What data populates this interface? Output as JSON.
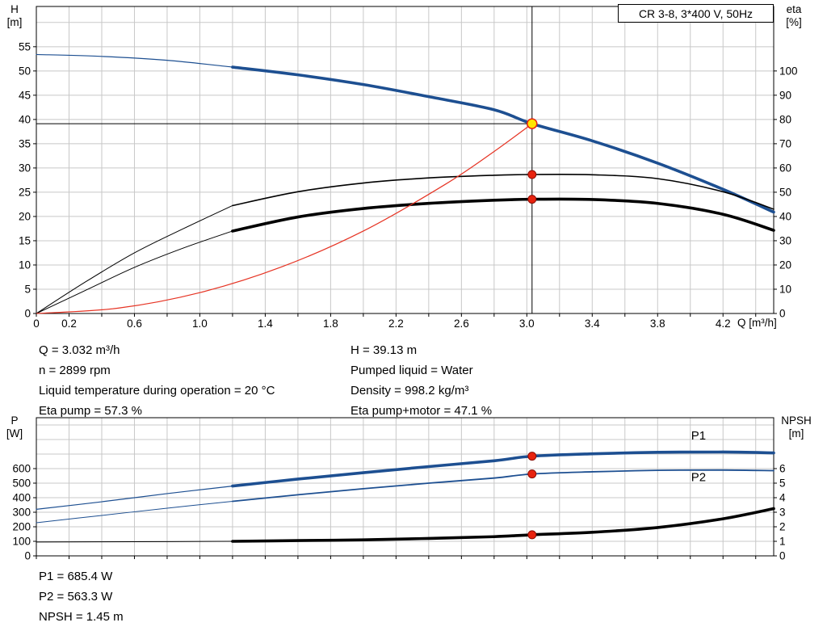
{
  "title_box": {
    "label": "CR 3-8, 3*400 V, 50Hz"
  },
  "info": {
    "left": [
      "Q = 3.032 m³/h",
      "n = 2899 rpm",
      "Liquid temperature during operation = 20 °C",
      "Eta pump = 57.3 %"
    ],
    "right": [
      "H = 39.13 m",
      "Pumped liquid = Water",
      "Density = 998.2 kg/m³",
      "Eta pump+motor = 47.1 %"
    ]
  },
  "results": [
    "P1 = 685.4 W",
    "P2 = 563.3 W",
    "NPSH = 1.45 m"
  ],
  "colors": {
    "blue": "#1d4f91",
    "black": "#000000",
    "red": "#e63323",
    "grid": "#c8c8c8",
    "axis": "#000000",
    "marker_red": "#e8230f",
    "marker_red_edge": "#8a0d05",
    "marker_yellow": "#ffe600"
  },
  "chart_data": [
    {
      "type": "line",
      "name": "hq-performance-chart",
      "x_axis": {
        "label": "Q [m³/h]",
        "min": 0,
        "max": 4.51,
        "tick_step": 0.2,
        "grid_step": 0.2,
        "labeled_ticks": [
          0,
          0.2,
          0.6,
          1.0,
          1.4,
          1.8,
          2.2,
          2.6,
          3.0,
          3.4,
          3.8,
          4.2
        ]
      },
      "y_left": {
        "label": "H",
        "unit": "[m]",
        "min": 0,
        "max": 63.3,
        "ticks": [
          0,
          5,
          10,
          15,
          20,
          25,
          30,
          35,
          40,
          45,
          50,
          55
        ],
        "grid_step": 5,
        "grid_to": 60
      },
      "y_right": {
        "label": "eta",
        "unit": "[%]",
        "min": 0,
        "max": 126.6,
        "ticks": [
          0,
          10,
          20,
          30,
          40,
          50,
          60,
          70,
          80,
          90,
          100
        ]
      },
      "series": [
        {
          "name": "pump-curve-low-flow",
          "axis": "left",
          "color": "blue",
          "width": 1.2,
          "points": [
            [
              0,
              53.4
            ],
            [
              0.4,
              53.0
            ],
            [
              0.8,
              52.2
            ],
            [
              1.2,
              50.8
            ]
          ]
        },
        {
          "name": "pump-curve",
          "axis": "left",
          "color": "blue",
          "width": 3.6,
          "points": [
            [
              1.2,
              50.8
            ],
            [
              1.6,
              49.2
            ],
            [
              2.0,
              47.2
            ],
            [
              2.4,
              44.7
            ],
            [
              2.8,
              42.0
            ],
            [
              3.032,
              39.13
            ],
            [
              3.4,
              35.6
            ],
            [
              3.8,
              31.0
            ],
            [
              4.2,
              25.6
            ],
            [
              4.51,
              20.9
            ]
          ]
        },
        {
          "name": "eta-pump-low-flow",
          "axis": "right",
          "color": "black",
          "width": 1,
          "points": [
            [
              0,
              0
            ],
            [
              0.3,
              13
            ],
            [
              0.6,
              25
            ],
            [
              0.9,
              35
            ],
            [
              1.2,
              44.5
            ]
          ]
        },
        {
          "name": "eta-pump",
          "axis": "right",
          "color": "black",
          "width": 1.6,
          "points": [
            [
              1.2,
              44.5
            ],
            [
              1.6,
              50.2
            ],
            [
              2.0,
              53.8
            ],
            [
              2.4,
              55.9
            ],
            [
              2.8,
              57.0
            ],
            [
              3.032,
              57.3
            ],
            [
              3.4,
              57.2
            ],
            [
              3.8,
              55.6
            ],
            [
              4.2,
              50.2
            ],
            [
              4.51,
              43.0
            ]
          ]
        },
        {
          "name": "eta-pump-motor-low-flow",
          "axis": "right",
          "color": "black",
          "width": 1,
          "points": [
            [
              0,
              0
            ],
            [
              0.3,
              9.5
            ],
            [
              0.6,
              19
            ],
            [
              0.9,
              27
            ],
            [
              1.2,
              34
            ]
          ]
        },
        {
          "name": "eta-pump-motor",
          "axis": "right",
          "color": "black",
          "width": 3.6,
          "points": [
            [
              1.2,
              34
            ],
            [
              1.6,
              39.8
            ],
            [
              2.0,
              43.3
            ],
            [
              2.4,
              45.4
            ],
            [
              2.8,
              46.7
            ],
            [
              3.032,
              47.1
            ],
            [
              3.4,
              47.0
            ],
            [
              3.8,
              45.4
            ],
            [
              4.2,
              40.9
            ],
            [
              4.51,
              34.3
            ]
          ]
        },
        {
          "name": "system-curve",
          "axis": "left",
          "color": "red",
          "width": 1.2,
          "points": [
            [
              0,
              0
            ],
            [
              0.5,
              1.1
            ],
            [
              1.0,
              4.3
            ],
            [
              1.5,
              9.6
            ],
            [
              2.0,
              17.0
            ],
            [
              2.5,
              26.6
            ],
            [
              2.8,
              33.4
            ],
            [
              3.032,
              39.13
            ]
          ]
        }
      ],
      "duty": {
        "vline_x": 3.032,
        "hline": {
          "y": 39.13,
          "x_from": 0,
          "x_to": 3.032
        }
      },
      "markers": [
        {
          "name": "eta-pump-duty-dot",
          "x": 3.032,
          "y": 57.3,
          "axis": "right",
          "type": "dot-red"
        },
        {
          "name": "eta-pump-motor-duty-dot",
          "x": 3.032,
          "y": 47.1,
          "axis": "right",
          "type": "dot-red"
        },
        {
          "name": "duty-point",
          "x": 3.032,
          "y": 39.13,
          "axis": "left",
          "type": "dot-yellow"
        }
      ]
    },
    {
      "type": "line",
      "name": "power-npsh-chart",
      "x_axis": {
        "min": 0,
        "max": 4.51,
        "tick_step": 0.2,
        "grid_step": 0.2
      },
      "y_left": {
        "label": "P",
        "unit": "[W]",
        "min": 0,
        "max": 950,
        "ticks": [
          0,
          100,
          200,
          300,
          400,
          500,
          600
        ],
        "grid_step": 100,
        "grid_to": 900
      },
      "y_right": {
        "label": "NPSH",
        "unit": "[m]",
        "min": 0,
        "max": 9.5,
        "ticks": [
          0,
          1,
          2,
          3,
          4,
          5,
          6
        ]
      },
      "series": [
        {
          "name": "p1-low-flow",
          "axis": "left",
          "color": "blue",
          "width": 1.2,
          "points": [
            [
              0,
              320
            ],
            [
              0.4,
              372
            ],
            [
              0.8,
              428
            ],
            [
              1.2,
              480
            ]
          ]
        },
        {
          "name": "p1",
          "axis": "left",
          "color": "blue",
          "width": 3.6,
          "points": [
            [
              1.2,
              480
            ],
            [
              1.6,
              528
            ],
            [
              2.0,
              572
            ],
            [
              2.4,
              614
            ],
            [
              2.8,
              654
            ],
            [
              3.032,
              685.4
            ],
            [
              3.4,
              702
            ],
            [
              3.8,
              712
            ],
            [
              4.2,
              714
            ],
            [
              4.51,
              708
            ]
          ]
        },
        {
          "name": "p2-low-flow",
          "axis": "left",
          "color": "blue",
          "width": 1,
          "points": [
            [
              0,
              228
            ],
            [
              0.4,
              278
            ],
            [
              0.8,
              328
            ],
            [
              1.2,
              375
            ]
          ]
        },
        {
          "name": "p2",
          "axis": "left",
          "color": "blue",
          "width": 1.8,
          "points": [
            [
              1.2,
              375
            ],
            [
              1.6,
              420
            ],
            [
              2.0,
              462
            ],
            [
              2.4,
              500
            ],
            [
              2.8,
              535
            ],
            [
              3.032,
              563.3
            ],
            [
              3.4,
              578
            ],
            [
              3.8,
              588
            ],
            [
              4.2,
              590
            ],
            [
              4.51,
              586
            ]
          ]
        },
        {
          "name": "npsh-low-flow",
          "axis": "right",
          "color": "black",
          "width": 1,
          "points": [
            [
              0,
              0.95
            ],
            [
              0.6,
              0.97
            ],
            [
              1.2,
              1.0
            ]
          ]
        },
        {
          "name": "npsh",
          "axis": "right",
          "color": "black",
          "width": 3.6,
          "points": [
            [
              1.2,
              1.0
            ],
            [
              1.6,
              1.05
            ],
            [
              2.0,
              1.1
            ],
            [
              2.4,
              1.2
            ],
            [
              2.8,
              1.32
            ],
            [
              3.032,
              1.45
            ],
            [
              3.4,
              1.62
            ],
            [
              3.8,
              1.95
            ],
            [
              4.2,
              2.55
            ],
            [
              4.51,
              3.25
            ]
          ]
        }
      ],
      "markers": [
        {
          "name": "p1-duty-dot",
          "x": 3.032,
          "y": 685.4,
          "axis": "left",
          "type": "dot-red"
        },
        {
          "name": "p2-duty-dot",
          "x": 3.032,
          "y": 563.3,
          "axis": "left",
          "type": "dot-red"
        },
        {
          "name": "npsh-duty-dot",
          "x": 3.032,
          "y": 1.45,
          "axis": "right",
          "type": "dot-red"
        }
      ],
      "labels": [
        {
          "x": 4.05,
          "y": 800,
          "axis": "left",
          "text": "P1",
          "color": "blue"
        },
        {
          "x": 4.05,
          "y": 515,
          "axis": "left",
          "text": "P2",
          "color": "blue"
        }
      ]
    }
  ]
}
